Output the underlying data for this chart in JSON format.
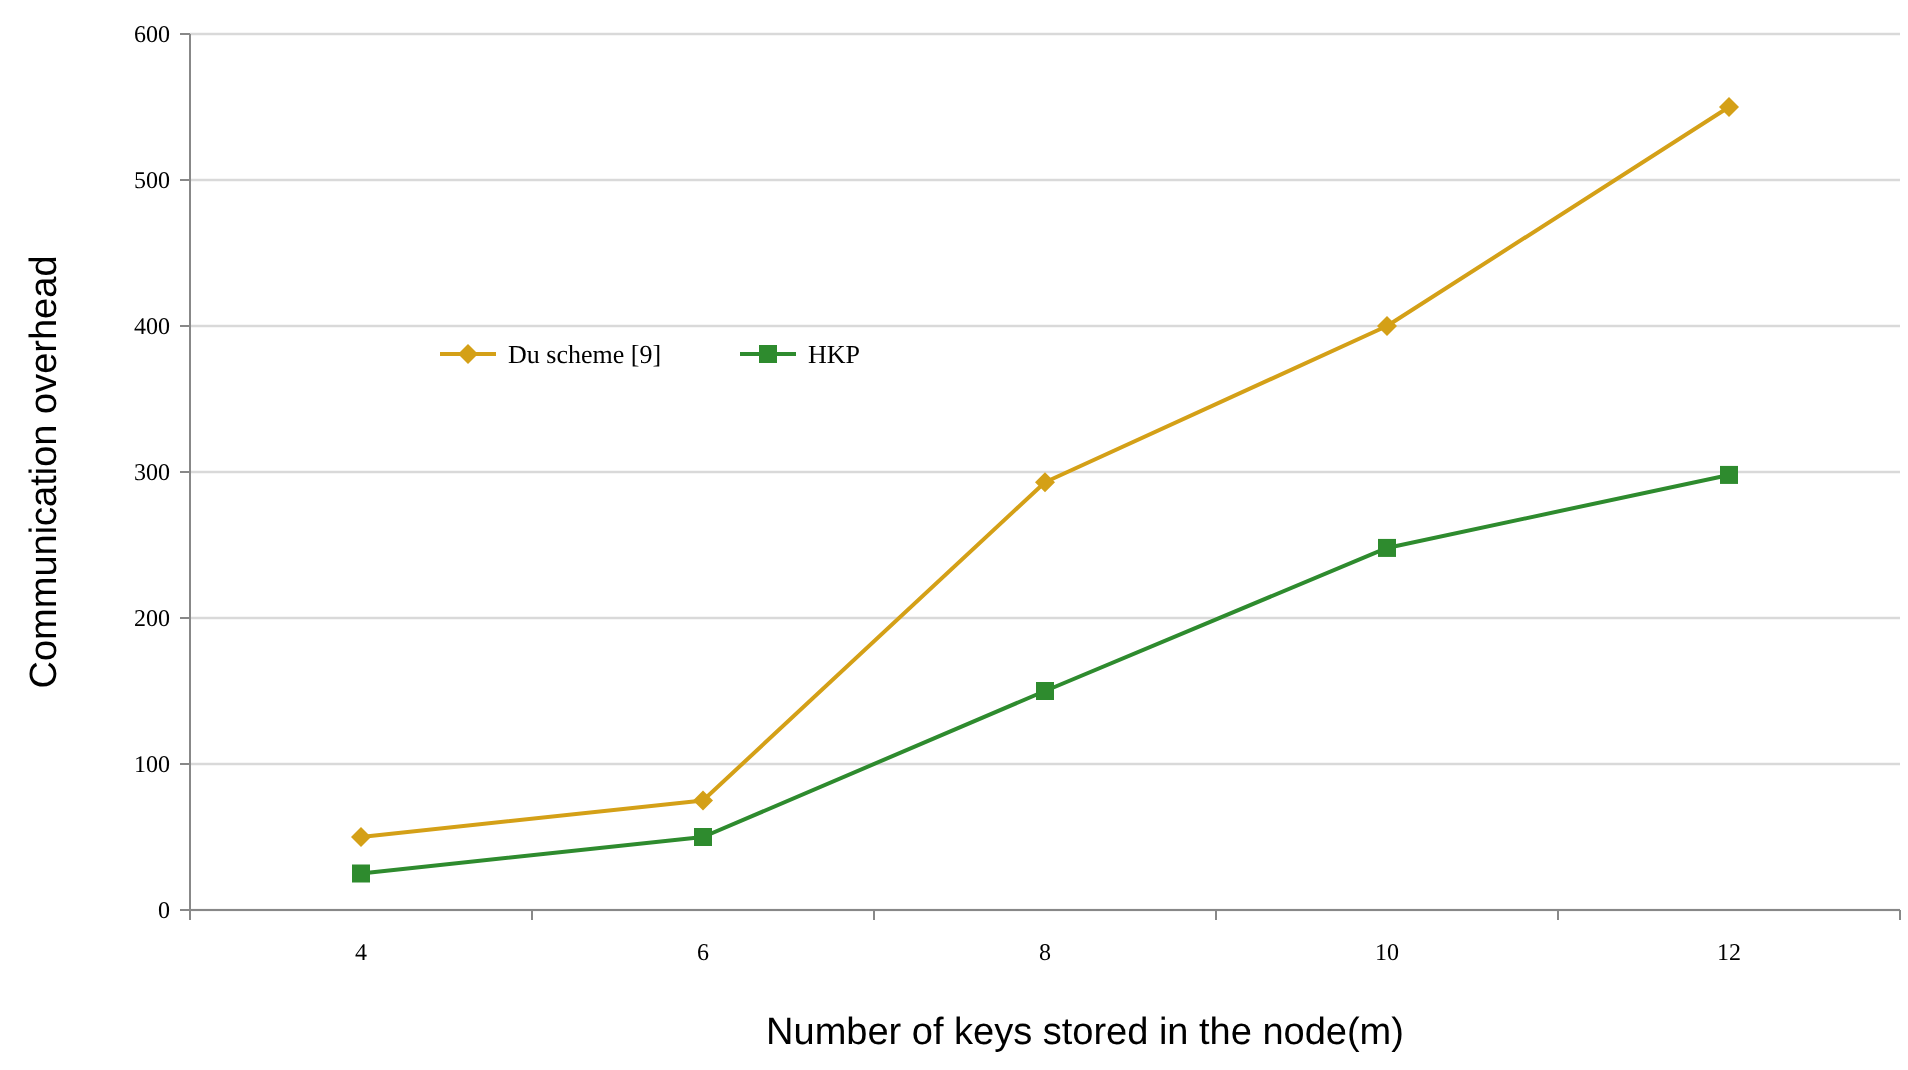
{
  "chart_data": {
    "type": "line",
    "xlabel": "Number of keys stored in the node(m)",
    "ylabel": "Communication overhead",
    "categories": [
      "4",
      "6",
      "8",
      "10",
      "12"
    ],
    "series": [
      {
        "name": "Du scheme [9]",
        "color": "#d4a017",
        "values": [
          50,
          75,
          293,
          400,
          550
        ],
        "marker": "diamond"
      },
      {
        "name": "HKP",
        "color": "#2e8b2e",
        "values": [
          25,
          50,
          150,
          248,
          298
        ],
        "marker": "square"
      }
    ],
    "ylim": [
      0,
      600
    ],
    "yticks": [
      0,
      100,
      200,
      300,
      400,
      500,
      600
    ],
    "grid": "y",
    "legend": "top left",
    "line_style": "solid"
  }
}
